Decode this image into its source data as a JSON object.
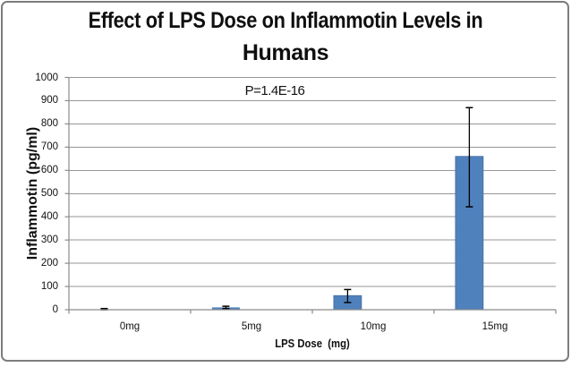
{
  "chart_data": {
    "type": "bar",
    "title": "Effect of LPS Dose on Inflammotin Levels in Humans",
    "title_lines": [
      "Effect of LPS Dose on Inflammotin Levels in",
      "Humans"
    ],
    "annotation": "P=1.4E-16",
    "xlabel": "LPS Dose  (mg)",
    "ylabel": "Inflammotin (pg/ml)",
    "categories": [
      "0mg",
      "5mg",
      "10mg",
      "15mg"
    ],
    "values": [
      2,
      10,
      61,
      660
    ],
    "error_up": [
      3,
      5,
      26,
      210
    ],
    "error_down": [
      3,
      5,
      30,
      217
    ],
    "ylim": [
      0,
      1000
    ],
    "ytick_step": 100,
    "ytick_labels": [
      "0",
      "100",
      "200",
      "300",
      "400",
      "500",
      "600",
      "700",
      "800",
      "900",
      "1000"
    ],
    "grid": true,
    "legend": "none",
    "colors": {
      "bar_fill": "#4f81bd",
      "bar_border": "#3f699d",
      "error_bar": "#000000",
      "gridline": "#969696",
      "axis": "#8b8b8b",
      "frame_border": "#7d7d7d",
      "text": "#0f0f0f",
      "background": "#ffffff"
    }
  }
}
